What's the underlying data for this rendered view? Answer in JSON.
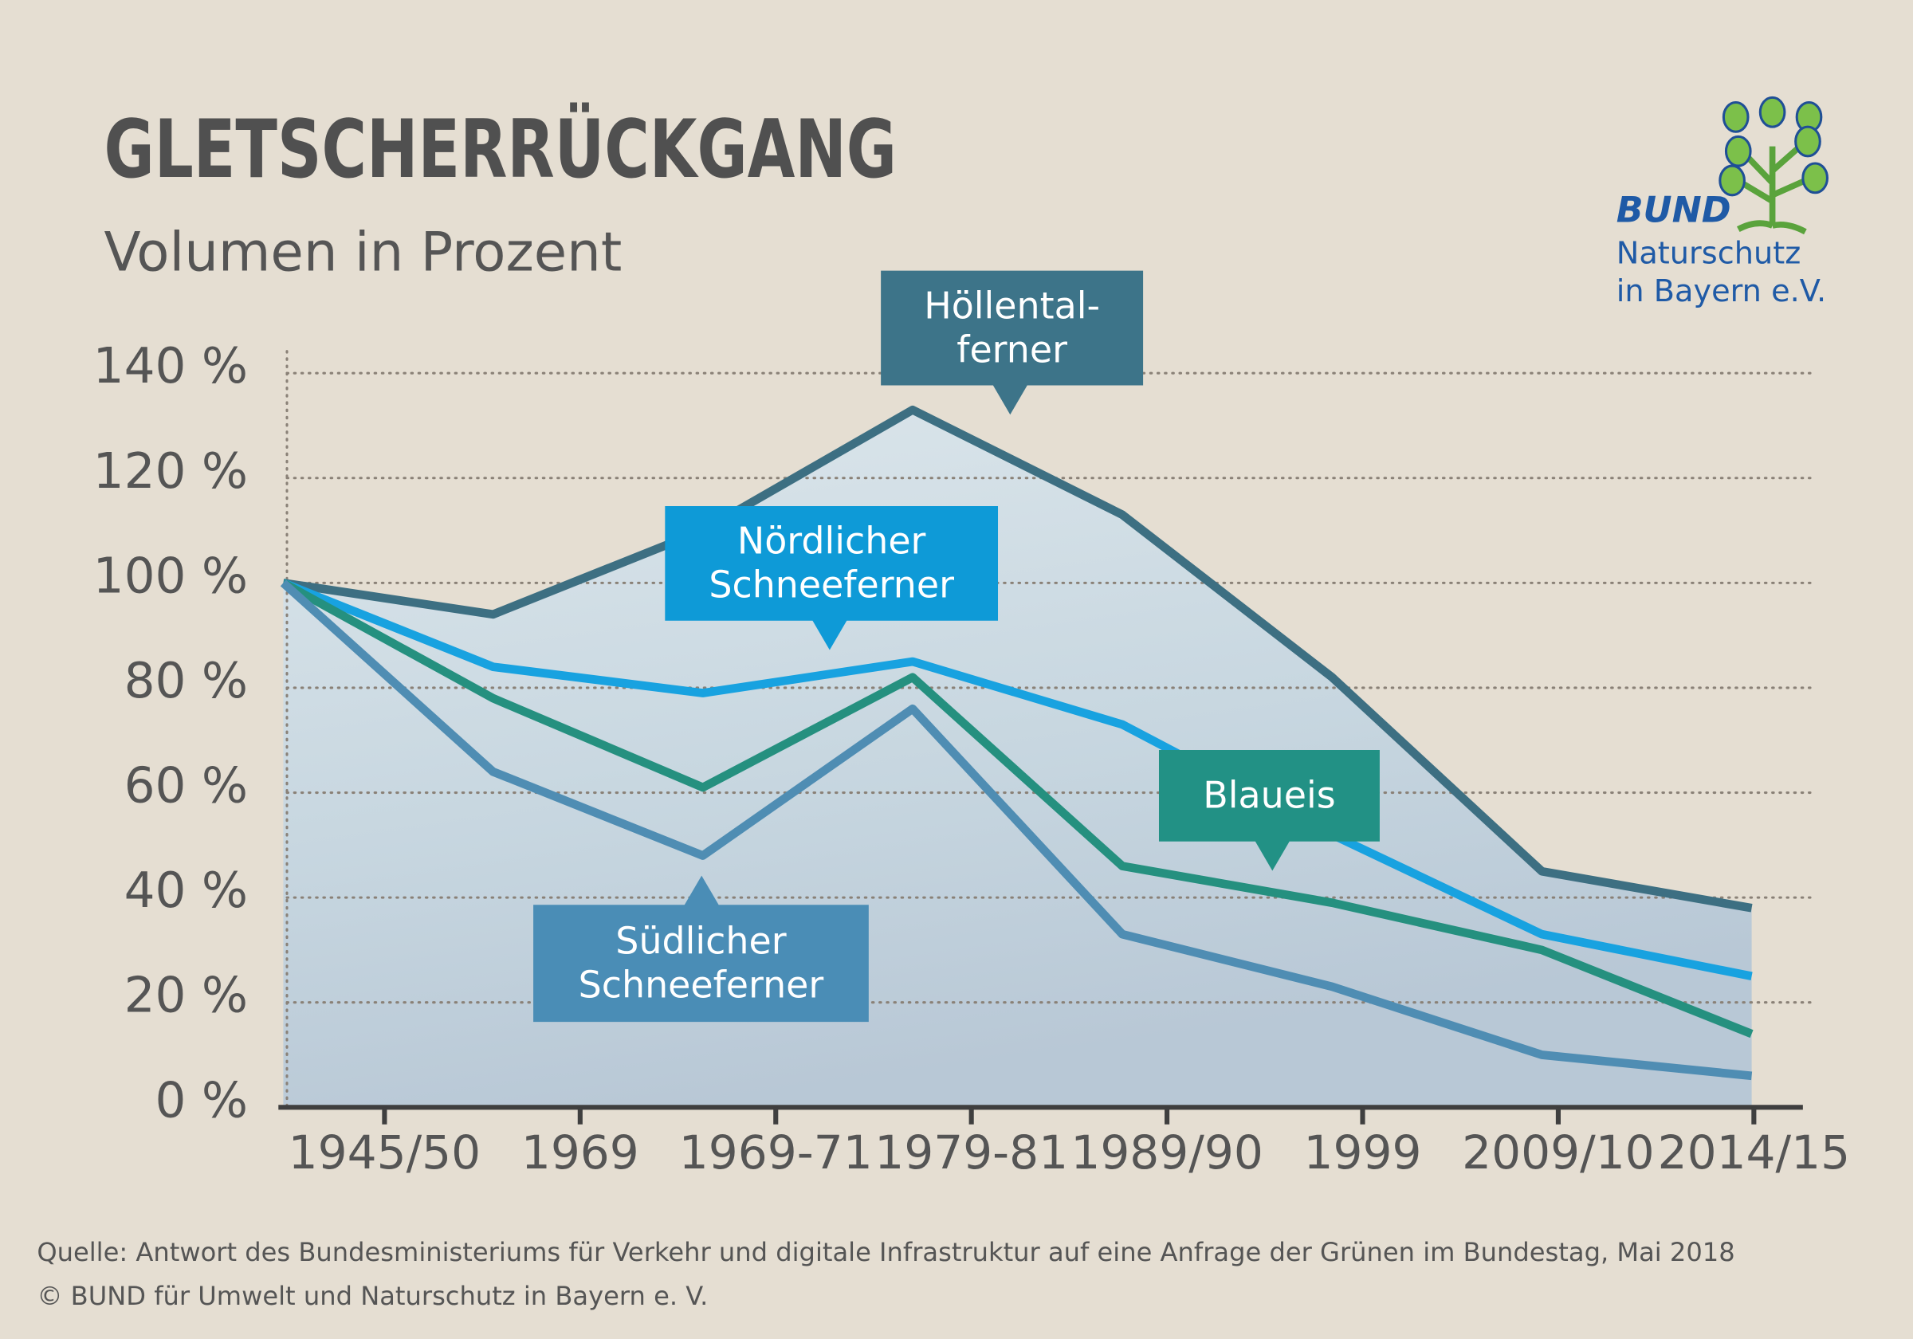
{
  "chart_data": {
    "type": "line",
    "title": "GLETSCHERRÜCKGANG",
    "subtitle": "Volumen in Prozent",
    "categories": [
      "1945/50",
      "1969",
      "1969-71",
      "1979-81",
      "1989/90",
      "1999",
      "2009/10",
      "2014/15"
    ],
    "series": [
      {
        "name": "Höllental-\nferner",
        "color": "#3d6f82",
        "values": [
          100,
          94,
          110,
          133,
          113,
          82,
          45,
          38
        ]
      },
      {
        "name": "Nördlicher\nSchneeferner",
        "color": "#18a2e0",
        "values": [
          100,
          84,
          79,
          85,
          73,
          52,
          33,
          25
        ]
      },
      {
        "name": "Blaueis",
        "color": "#25907f",
        "values": [
          100,
          78,
          61,
          82,
          46,
          39,
          30,
          14
        ]
      },
      {
        "name": "Südlicher\nSchneeferner",
        "color": "#4f8db3",
        "values": [
          100,
          64,
          48,
          76,
          33,
          23,
          10,
          6
        ]
      }
    ],
    "ylim": [
      0,
      140
    ],
    "yticks": [
      {
        "value": 0,
        "label": "0 %"
      },
      {
        "value": 20,
        "label": "20 %"
      },
      {
        "value": 40,
        "label": "40 %"
      },
      {
        "value": 60,
        "label": "60 %"
      },
      {
        "value": 80,
        "label": "80 %"
      },
      {
        "value": 100,
        "label": "100 %"
      },
      {
        "value": 120,
        "label": "120 %"
      },
      {
        "value": 140,
        "label": "140 %"
      }
    ],
    "grid": true,
    "logo": [
      "BUND",
      "Naturschutz",
      "in Bayern e.V."
    ],
    "source": "Quelle: Antwort des Bundesministeriums für Verkehr und digitale Infrastruktur auf eine Anfrage der Grünen im Bundestag, Mai 2018",
    "copyright": "© BUND für Umwelt und Naturschutz in Bayern e. V."
  }
}
